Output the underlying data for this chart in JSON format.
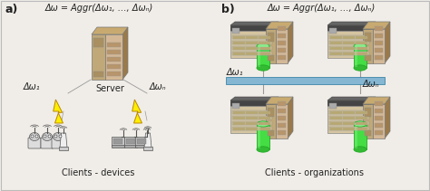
{
  "bg_color": "#f0ede8",
  "title_a": "a)",
  "title_b": "b)",
  "formula": "Δω = Aggr(Δω₁, …, Δωₙ)",
  "label_server": "Server",
  "label_clients_devices": "Clients - devices",
  "label_clients_orgs": "Clients - organizations",
  "label_dw1_a": "Δω₁",
  "label_dwN_a": "Δωₙ",
  "label_dw1_b": "Δω₁",
  "label_dwN_b": "Δωₙ",
  "server_tan": "#d4b896",
  "server_dark": "#b8956a",
  "server_side": "#9a7a4a",
  "rack_tan": "#d4c4a0",
  "rack_gray": "#aaaaaa",
  "rack_dark": "#666666",
  "cylinder_green": "#44dd44",
  "cylinder_dark": "#22aa22",
  "cylinder_light": "#88ee88",
  "wire_color": "#7ab0d0",
  "wire_edge": "#4488aa",
  "lightning_yellow": "#ffee00",
  "lightning_outline": "#bb8800",
  "lightning_fill": "#ffffaa",
  "line_gray": "#999999",
  "text_color": "#222222",
  "device_gray": "#cccccc",
  "device_dark": "#888888"
}
